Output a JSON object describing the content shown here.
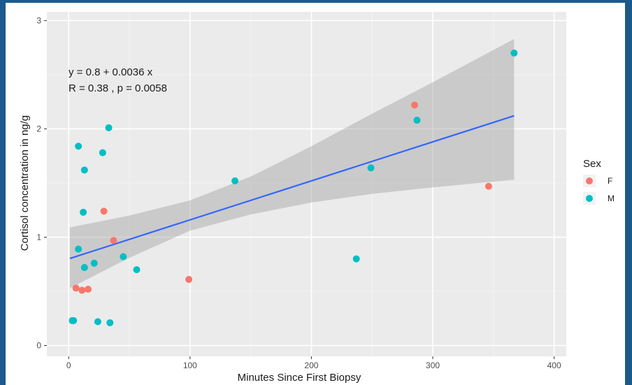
{
  "chart_data": {
    "type": "scatter",
    "xlabel": "Minutes Since First Biopsy",
    "ylabel": "Cortisol concentration in ng/g",
    "xlim": [
      -18,
      410
    ],
    "ylim": [
      -0.1,
      3.08
    ],
    "x_ticks": [
      0,
      100,
      200,
      300,
      400
    ],
    "y_ticks": [
      0,
      1,
      2,
      3
    ],
    "legend": {
      "title": "Sex",
      "placement": "right"
    },
    "annotation": {
      "line1": "y = 0.8 + 0.0036 x",
      "line2": "R = 0.38 , p = 0.0058"
    },
    "series": [
      {
        "name": "F",
        "color": "#f8766d",
        "points": [
          {
            "x": 6,
            "y": 0.53
          },
          {
            "x": 11,
            "y": 0.51
          },
          {
            "x": 16,
            "y": 0.52
          },
          {
            "x": 29,
            "y": 1.24
          },
          {
            "x": 37,
            "y": 0.97
          },
          {
            "x": 99,
            "y": 0.61
          },
          {
            "x": 285,
            "y": 2.22
          },
          {
            "x": 346,
            "y": 1.47
          }
        ]
      },
      {
        "name": "M",
        "color": "#00bfc4",
        "points": [
          {
            "x": 3,
            "y": 0.23
          },
          {
            "x": 4,
            "y": 0.23
          },
          {
            "x": 8,
            "y": 0.89
          },
          {
            "x": 8,
            "y": 1.84
          },
          {
            "x": 12,
            "y": 1.23
          },
          {
            "x": 13,
            "y": 1.62
          },
          {
            "x": 13,
            "y": 0.72
          },
          {
            "x": 21,
            "y": 0.76
          },
          {
            "x": 24,
            "y": 0.22
          },
          {
            "x": 28,
            "y": 1.78
          },
          {
            "x": 33,
            "y": 2.01
          },
          {
            "x": 34,
            "y": 0.21
          },
          {
            "x": 45,
            "y": 0.82
          },
          {
            "x": 56,
            "y": 0.7
          },
          {
            "x": 137,
            "y": 1.52
          },
          {
            "x": 237,
            "y": 0.8
          },
          {
            "x": 249,
            "y": 1.64
          },
          {
            "x": 287,
            "y": 2.08
          },
          {
            "x": 367,
            "y": 2.7
          }
        ]
      }
    ],
    "fit": {
      "color": "#3366ff",
      "band_color": "#999999",
      "x_range": [
        1,
        367
      ],
      "intercept": 0.8,
      "slope": 0.0036,
      "band": [
        {
          "x": 1,
          "lo": 0.53,
          "hi": 1.09
        },
        {
          "x": 50,
          "lo": 0.81,
          "hi": 1.2
        },
        {
          "x": 100,
          "lo": 1.06,
          "hi": 1.34
        },
        {
          "x": 150,
          "lo": 1.21,
          "hi": 1.56
        },
        {
          "x": 200,
          "lo": 1.32,
          "hi": 1.84
        },
        {
          "x": 250,
          "lo": 1.4,
          "hi": 2.14
        },
        {
          "x": 300,
          "lo": 1.46,
          "hi": 2.43
        },
        {
          "x": 367,
          "lo": 1.53,
          "hi": 2.83
        }
      ]
    }
  }
}
